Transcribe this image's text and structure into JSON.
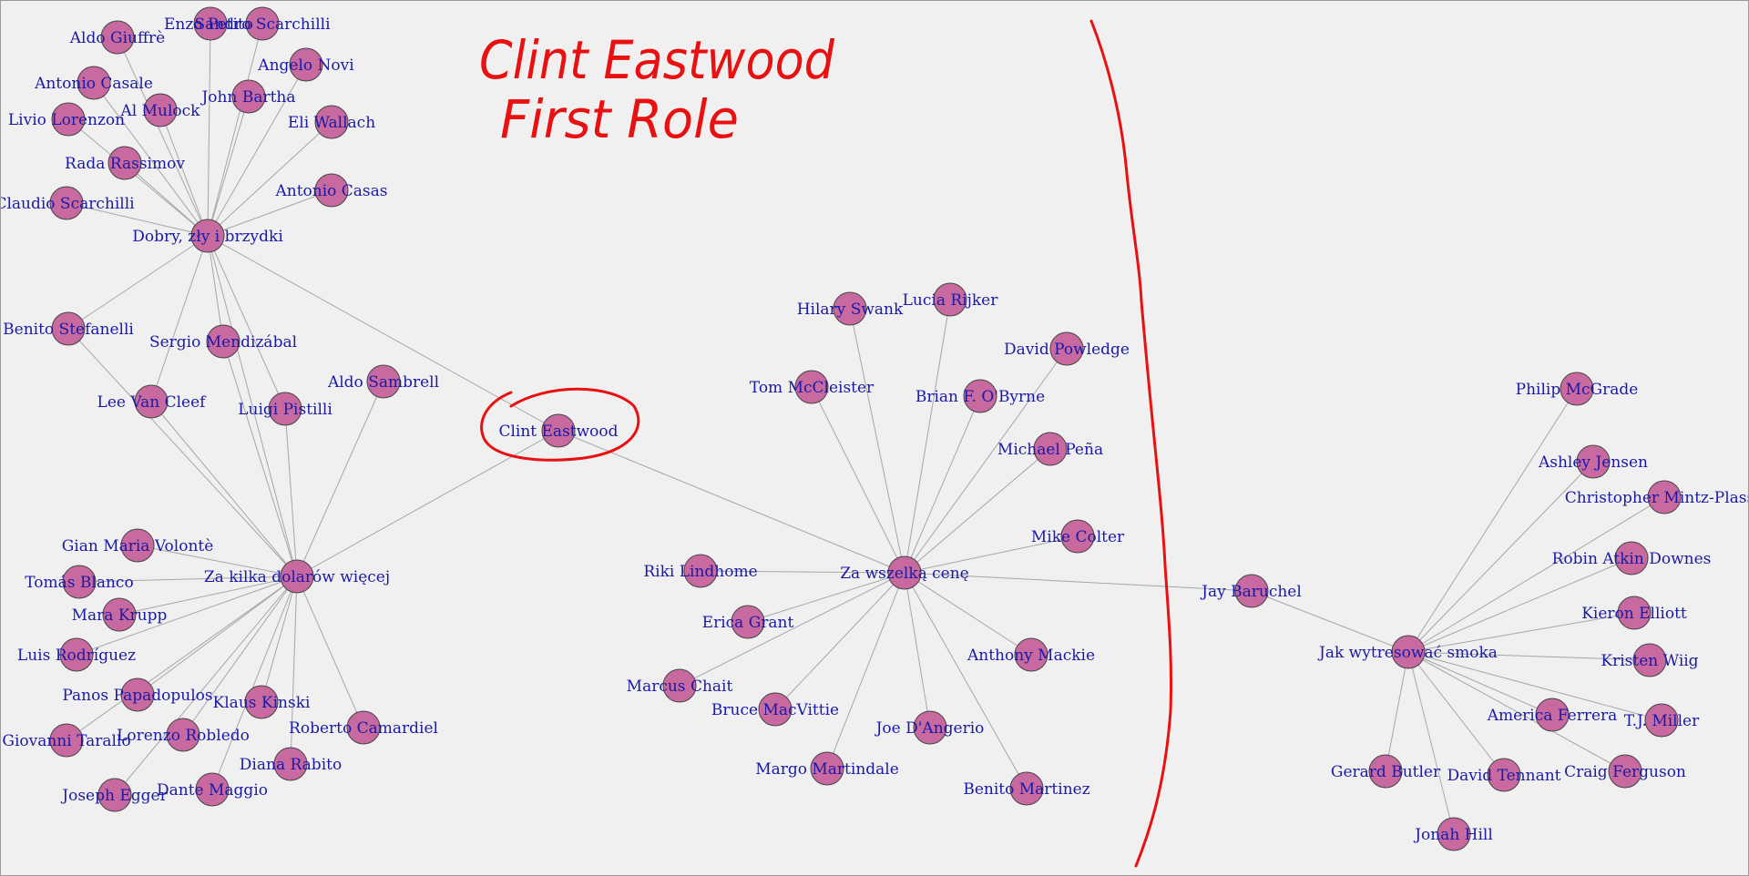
{
  "annotation": {
    "line1": "Clint Eastwood",
    "line2": "First Role",
    "ink_color": "#e81010"
  },
  "colors": {
    "node_fill": "#c8699f",
    "label": "#1a1aa6",
    "edge": "#a6a6a6",
    "highlight_ring": "#e81010"
  },
  "graph": {
    "nodes": [
      {
        "id": "dobry",
        "label": "Dobry, zły i brzydki"
      },
      {
        "id": "zakilka",
        "label": "Za kilka dolarów więcej"
      },
      {
        "id": "clint",
        "label": "Clint Eastwood"
      },
      {
        "id": "zawszelka",
        "label": "Za wszelką cenę"
      },
      {
        "id": "jay",
        "label": "Jay Baruchel"
      },
      {
        "id": "jak",
        "label": "Jak wytresować smoka"
      },
      {
        "id": "enzo",
        "label": "Enzo Petito"
      },
      {
        "id": "sandro",
        "label": "Sandro Scarchilli"
      },
      {
        "id": "giuffre",
        "label": "Aldo Giuffrè"
      },
      {
        "id": "novi",
        "label": "Angelo Novi"
      },
      {
        "id": "casale",
        "label": "Antonio Casale"
      },
      {
        "id": "bartha",
        "label": "John Bartha"
      },
      {
        "id": "mulock",
        "label": "Al Mulock"
      },
      {
        "id": "livio",
        "label": "Livio Lorenzon",
        "highlight": true
      },
      {
        "id": "wallach",
        "label": "Eli Wallach"
      },
      {
        "id": "rada",
        "label": "Rada Rassimov"
      },
      {
        "id": "claudio",
        "label": "Claudio Scarchilli"
      },
      {
        "id": "casas",
        "label": "Antonio Casas"
      },
      {
        "id": "benito_s",
        "label": "Benito Stefanelli"
      },
      {
        "id": "sergio",
        "label": "Sergio Mendizábal"
      },
      {
        "id": "leevc",
        "label": "Lee Van Cleef"
      },
      {
        "id": "sambrell",
        "label": "Aldo Sambrell"
      },
      {
        "id": "pistilli",
        "label": "Luigi Pistilli"
      },
      {
        "id": "volonte",
        "label": "Gian Maria Volontè"
      },
      {
        "id": "blanco",
        "label": "Tomás Blanco"
      },
      {
        "id": "krupp",
        "label": "Mara Krupp"
      },
      {
        "id": "rodriguez",
        "label": "Luis Rodríguez"
      },
      {
        "id": "panos",
        "label": "Panos Papadopulos"
      },
      {
        "id": "kinski",
        "label": "Klaus Kinski"
      },
      {
        "id": "camardiel",
        "label": "Roberto Camardiel"
      },
      {
        "id": "tarallo",
        "label": "Giovanni Tarallo"
      },
      {
        "id": "robledo",
        "label": "Lorenzo Robledo"
      },
      {
        "id": "rabito",
        "label": "Diana Rabito"
      },
      {
        "id": "egger",
        "label": "Joseph Egger"
      },
      {
        "id": "maggio",
        "label": "Dante Maggio"
      },
      {
        "id": "swank",
        "label": "Hilary Swank"
      },
      {
        "id": "rijker",
        "label": "Lucia Rijker"
      },
      {
        "id": "powledge",
        "label": "David Powledge"
      },
      {
        "id": "mccleister",
        "label": "Tom McCleister"
      },
      {
        "id": "obyrne",
        "label": "Brian F. O'Byrne"
      },
      {
        "id": "pena",
        "label": "Michael Peña"
      },
      {
        "id": "colter",
        "label": "Mike Colter"
      },
      {
        "id": "lindhome",
        "label": "Riki Lindhome"
      },
      {
        "id": "grant",
        "label": "Erica Grant"
      },
      {
        "id": "mackie",
        "label": "Anthony Mackie"
      },
      {
        "id": "chait",
        "label": "Marcus Chait"
      },
      {
        "id": "macvittie",
        "label": "Bruce MacVittie"
      },
      {
        "id": "dangerio",
        "label": "Joe D'Angerio"
      },
      {
        "id": "martindale",
        "label": "Margo Martindale"
      },
      {
        "id": "martinez",
        "label": "Benito Martinez"
      },
      {
        "id": "mcgrade",
        "label": "Philip McGrade"
      },
      {
        "id": "jensen",
        "label": "Ashley Jensen"
      },
      {
        "id": "mintz",
        "label": "Christopher Mintz-Plasse"
      },
      {
        "id": "downes",
        "label": "Robin Atkin Downes"
      },
      {
        "id": "elliott",
        "label": "Kieron Elliott"
      },
      {
        "id": "wiig",
        "label": "Kristen Wiig"
      },
      {
        "id": "ferrera",
        "label": "America Ferrera"
      },
      {
        "id": "miller",
        "label": "T.J. Miller"
      },
      {
        "id": "butler",
        "label": "Gerard Butler"
      },
      {
        "id": "tennant",
        "label": "David Tennant"
      },
      {
        "id": "ferguson",
        "label": "Craig Ferguson"
      },
      {
        "id": "hill",
        "label": "Jonah Hill"
      }
    ],
    "edges": [
      [
        "dobry",
        "enzo"
      ],
      [
        "dobry",
        "sandro"
      ],
      [
        "dobry",
        "giuffre"
      ],
      [
        "dobry",
        "novi"
      ],
      [
        "dobry",
        "casale"
      ],
      [
        "dobry",
        "bartha"
      ],
      [
        "dobry",
        "mulock"
      ],
      [
        "dobry",
        "livio"
      ],
      [
        "dobry",
        "wallach"
      ],
      [
        "dobry",
        "rada"
      ],
      [
        "dobry",
        "claudio"
      ],
      [
        "dobry",
        "casas"
      ],
      [
        "dobry",
        "benito_s"
      ],
      [
        "dobry",
        "sergio"
      ],
      [
        "dobry",
        "leevc"
      ],
      [
        "dobry",
        "pistilli"
      ],
      [
        "dobry",
        "clint"
      ],
      [
        "dobry",
        "zakilka"
      ],
      [
        "zakilka",
        "benito_s"
      ],
      [
        "zakilka",
        "sergio"
      ],
      [
        "zakilka",
        "leevc"
      ],
      [
        "zakilka",
        "sambrell"
      ],
      [
        "zakilka",
        "pistilli"
      ],
      [
        "zakilka",
        "clint"
      ],
      [
        "zakilka",
        "volonte"
      ],
      [
        "zakilka",
        "blanco"
      ],
      [
        "zakilka",
        "krupp"
      ],
      [
        "zakilka",
        "rodriguez"
      ],
      [
        "zakilka",
        "panos"
      ],
      [
        "zakilka",
        "kinski"
      ],
      [
        "zakilka",
        "camardiel"
      ],
      [
        "zakilka",
        "tarallo"
      ],
      [
        "zakilka",
        "robledo"
      ],
      [
        "zakilka",
        "rabito"
      ],
      [
        "zakilka",
        "egger"
      ],
      [
        "zakilka",
        "maggio"
      ],
      [
        "clint",
        "zawszelka"
      ],
      [
        "zawszelka",
        "swank"
      ],
      [
        "zawszelka",
        "rijker"
      ],
      [
        "zawszelka",
        "powledge"
      ],
      [
        "zawszelka",
        "mccleister"
      ],
      [
        "zawszelka",
        "obyrne"
      ],
      [
        "zawszelka",
        "pena"
      ],
      [
        "zawszelka",
        "colter"
      ],
      [
        "zawszelka",
        "lindhome"
      ],
      [
        "zawszelka",
        "grant"
      ],
      [
        "zawszelka",
        "mackie"
      ],
      [
        "zawszelka",
        "chait"
      ],
      [
        "zawszelka",
        "macvittie"
      ],
      [
        "zawszelka",
        "dangerio"
      ],
      [
        "zawszelka",
        "martindale"
      ],
      [
        "zawszelka",
        "martinez"
      ],
      [
        "zawszelka",
        "jay"
      ],
      [
        "jay",
        "jak"
      ],
      [
        "jak",
        "mcgrade"
      ],
      [
        "jak",
        "jensen"
      ],
      [
        "jak",
        "mintz"
      ],
      [
        "jak",
        "downes"
      ],
      [
        "jak",
        "elliott"
      ],
      [
        "jak",
        "wiig"
      ],
      [
        "jak",
        "ferrera"
      ],
      [
        "jak",
        "miller"
      ],
      [
        "jak",
        "butler"
      ],
      [
        "jak",
        "tennant"
      ],
      [
        "jak",
        "ferguson"
      ],
      [
        "jak",
        "hill"
      ]
    ]
  }
}
